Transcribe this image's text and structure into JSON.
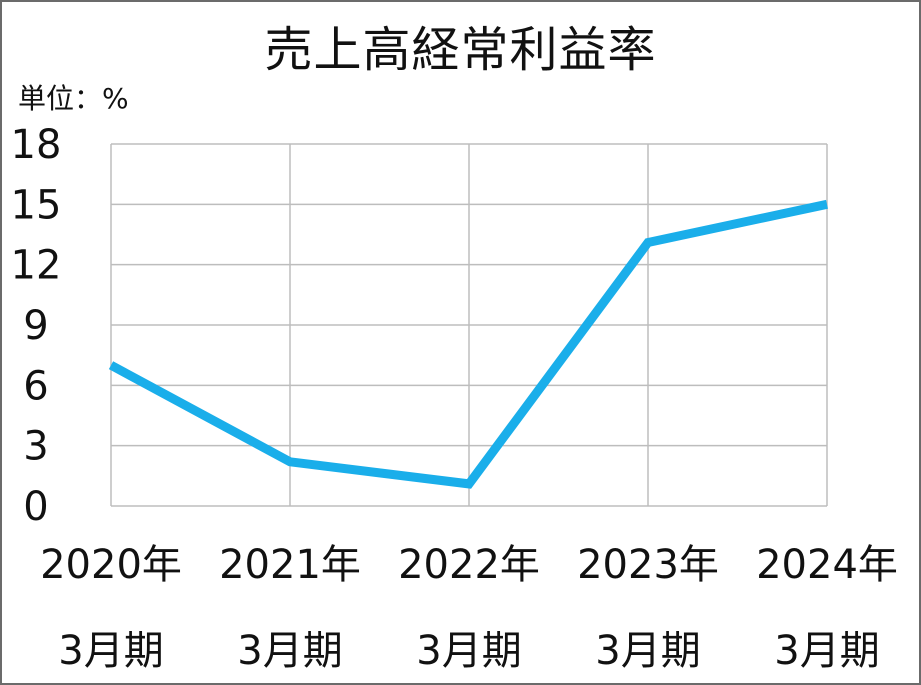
{
  "chart_data": {
    "type": "line",
    "title": "売上高経常利益率",
    "unit_label": "単位：%",
    "xlabel": "",
    "ylabel": "",
    "categories": [
      [
        "2020年",
        "3月期"
      ],
      [
        "2021年",
        "3月期"
      ],
      [
        "2022年",
        "3月期"
      ],
      [
        "2023年",
        "3月期"
      ],
      [
        "2024年",
        "3月期"
      ]
    ],
    "series": [
      {
        "values": [
          7.0,
          2.2,
          1.1,
          13.1,
          15.0
        ],
        "color": "#1aaeea"
      }
    ],
    "ylim": [
      0,
      18
    ],
    "yticks": [
      0,
      3,
      6,
      9,
      12,
      15,
      18
    ],
    "grid": true,
    "grid_color": "#bdbdbd",
    "frame_color": "#6b6b6b"
  }
}
